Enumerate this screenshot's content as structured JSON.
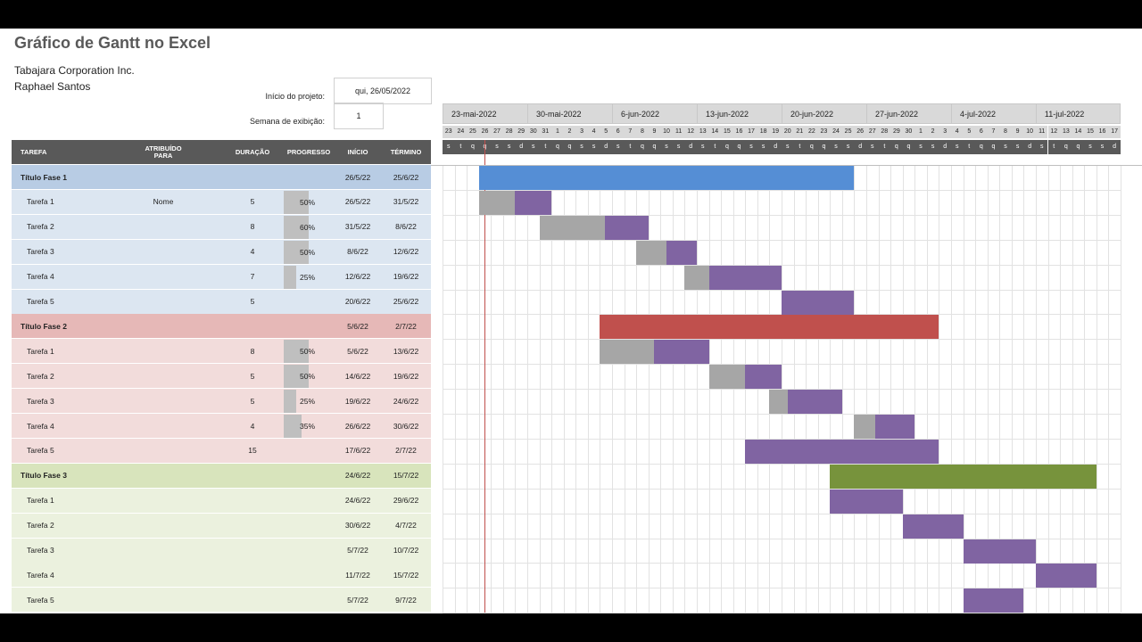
{
  "title": "Gráfico de Gantt no Excel",
  "company": "Tabajara Corporation Inc.",
  "author": "Raphael Santos",
  "project_start_label": "Início do projeto:",
  "project_start_value": "qui, 26/05/2022",
  "week_label": "Semana de exibição:",
  "week_value": "1",
  "headers": {
    "task": "TAREFA",
    "assigned": "ATRIBUÍDO PARA",
    "duration": "DURAÇÃO",
    "progress": "PROGRESSO",
    "start": "INÍCIO",
    "end": "TÉRMINO"
  },
  "weeks": [
    "23-mai-2022",
    "30-mai-2022",
    "6-jun-2022",
    "13-jun-2022",
    "20-jun-2022",
    "27-jun-2022",
    "4-jul-2022",
    "11-jul-2022"
  ],
  "day_numbers": [
    "23",
    "24",
    "25",
    "26",
    "27",
    "28",
    "29",
    "30",
    "31",
    "1",
    "2",
    "3",
    "4",
    "5",
    "6",
    "7",
    "8",
    "9",
    "10",
    "11",
    "12",
    "13",
    "14",
    "15",
    "16",
    "17",
    "18",
    "19",
    "20",
    "21",
    "22",
    "23",
    "24",
    "25",
    "26",
    "27",
    "28",
    "29",
    "30",
    "1",
    "2",
    "3",
    "4",
    "5",
    "6",
    "7",
    "8",
    "9",
    "10",
    "11",
    "12",
    "13",
    "14",
    "15",
    "16",
    "17"
  ],
  "day_letters": [
    "s",
    "t",
    "q",
    "q",
    "s",
    "s",
    "d",
    "s",
    "t",
    "q",
    "q",
    "s",
    "s",
    "d",
    "s",
    "t",
    "q",
    "q",
    "s",
    "s",
    "d",
    "s",
    "t",
    "q",
    "q",
    "s",
    "s",
    "d",
    "s",
    "t",
    "q",
    "q",
    "s",
    "s",
    "d",
    "s",
    "t",
    "q",
    "q",
    "s",
    "s",
    "d",
    "s",
    "t",
    "q",
    "q",
    "s",
    "s",
    "d",
    "s",
    "t",
    "q",
    "q",
    "s",
    "s",
    "d"
  ],
  "colors": {
    "phase1_header": "#b8cce4",
    "phase1_row": "#dce6f1",
    "phase1_bar": "#558ed5",
    "phase2_header": "#e6b8b7",
    "phase2_row": "#f2dcdb",
    "phase2_bar": "#c0504d",
    "phase3_header": "#d8e4bc",
    "phase3_row": "#ebf1de",
    "phase3_bar": "#77933c",
    "task_bar": "#8064a2",
    "done_bar": "#a6a6a6"
  },
  "rows": [
    {
      "type": "phase",
      "phase": 1,
      "task": "Título Fase 1",
      "assigned": "",
      "duration": "",
      "progress": null,
      "progress_label": "",
      "start": "26/5/22",
      "end": "25/6/22",
      "bar_start": 3,
      "bar_len": 31
    },
    {
      "type": "task",
      "phase": 1,
      "task": "Tarefa 1",
      "assigned": "Nome",
      "duration": "5",
      "progress": 0.5,
      "progress_label": "50%",
      "start": "26/5/22",
      "end": "31/5/22",
      "bar_start": 3,
      "bar_len": 6
    },
    {
      "type": "task",
      "phase": 1,
      "task": "Tarefa 2",
      "assigned": "",
      "duration": "8",
      "progress": 0.6,
      "progress_label": "60%",
      "start": "31/5/22",
      "end": "8/6/22",
      "bar_start": 8,
      "bar_len": 9
    },
    {
      "type": "task",
      "phase": 1,
      "task": "Tarefa 3",
      "assigned": "",
      "duration": "4",
      "progress": 0.5,
      "progress_label": "50%",
      "start": "8/6/22",
      "end": "12/6/22",
      "bar_start": 16,
      "bar_len": 5
    },
    {
      "type": "task",
      "phase": 1,
      "task": "Tarefa 4",
      "assigned": "",
      "duration": "7",
      "progress": 0.25,
      "progress_label": "25%",
      "start": "12/6/22",
      "end": "19/6/22",
      "bar_start": 20,
      "bar_len": 8
    },
    {
      "type": "task",
      "phase": 1,
      "task": "Tarefa 5",
      "assigned": "",
      "duration": "5",
      "progress": null,
      "progress_label": "",
      "start": "20/6/22",
      "end": "25/6/22",
      "bar_start": 28,
      "bar_len": 6
    },
    {
      "type": "phase",
      "phase": 2,
      "task": "Título Fase 2",
      "assigned": "",
      "duration": "",
      "progress": null,
      "progress_label": "",
      "start": "5/6/22",
      "end": "2/7/22",
      "bar_start": 13,
      "bar_len": 28
    },
    {
      "type": "task",
      "phase": 2,
      "task": "Tarefa 1",
      "assigned": "",
      "duration": "8",
      "progress": 0.5,
      "progress_label": "50%",
      "start": "5/6/22",
      "end": "13/6/22",
      "bar_start": 13,
      "bar_len": 9
    },
    {
      "type": "task",
      "phase": 2,
      "task": "Tarefa 2",
      "assigned": "",
      "duration": "5",
      "progress": 0.5,
      "progress_label": "50%",
      "start": "14/6/22",
      "end": "19/6/22",
      "bar_start": 22,
      "bar_len": 6
    },
    {
      "type": "task",
      "phase": 2,
      "task": "Tarefa 3",
      "assigned": "",
      "duration": "5",
      "progress": 0.25,
      "progress_label": "25%",
      "start": "19/6/22",
      "end": "24/6/22",
      "bar_start": 27,
      "bar_len": 6
    },
    {
      "type": "task",
      "phase": 2,
      "task": "Tarefa 4",
      "assigned": "",
      "duration": "4",
      "progress": 0.35,
      "progress_label": "35%",
      "start": "26/6/22",
      "end": "30/6/22",
      "bar_start": 34,
      "bar_len": 5
    },
    {
      "type": "task",
      "phase": 2,
      "task": "Tarefa 5",
      "assigned": "",
      "duration": "15",
      "progress": null,
      "progress_label": "",
      "start": "17/6/22",
      "end": "2/7/22",
      "bar_start": 25,
      "bar_len": 16
    },
    {
      "type": "phase",
      "phase": 3,
      "task": "Título Fase 3",
      "assigned": "",
      "duration": "",
      "progress": null,
      "progress_label": "",
      "start": "24/6/22",
      "end": "15/7/22",
      "bar_start": 32,
      "bar_len": 22
    },
    {
      "type": "task",
      "phase": 3,
      "task": "Tarefa 1",
      "assigned": "",
      "duration": "",
      "progress": null,
      "progress_label": "",
      "start": "24/6/22",
      "end": "29/6/22",
      "bar_start": 32,
      "bar_len": 6
    },
    {
      "type": "task",
      "phase": 3,
      "task": "Tarefa 2",
      "assigned": "",
      "duration": "",
      "progress": null,
      "progress_label": "",
      "start": "30/6/22",
      "end": "4/7/22",
      "bar_start": 38,
      "bar_len": 5
    },
    {
      "type": "task",
      "phase": 3,
      "task": "Tarefa 3",
      "assigned": "",
      "duration": "",
      "progress": null,
      "progress_label": "",
      "start": "5/7/22",
      "end": "10/7/22",
      "bar_start": 43,
      "bar_len": 6
    },
    {
      "type": "task",
      "phase": 3,
      "task": "Tarefa 4",
      "assigned": "",
      "duration": "",
      "progress": null,
      "progress_label": "",
      "start": "11/7/22",
      "end": "15/7/22",
      "bar_start": 49,
      "bar_len": 5
    },
    {
      "type": "task",
      "phase": 3,
      "task": "Tarefa 5",
      "assigned": "",
      "duration": "",
      "progress": null,
      "progress_label": "",
      "start": "5/7/22",
      "end": "9/7/22",
      "bar_start": 43,
      "bar_len": 5
    }
  ]
}
